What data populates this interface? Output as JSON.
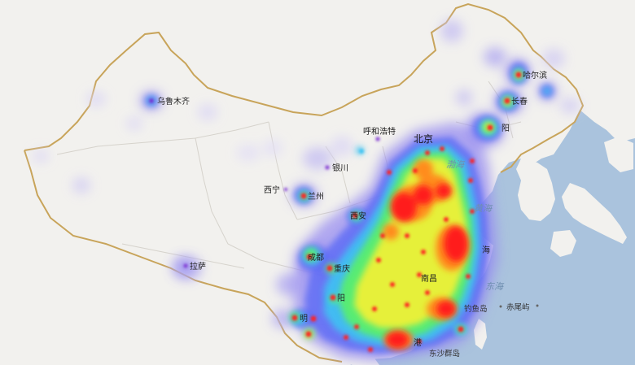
{
  "colors": {
    "land": "#f2f1ee",
    "sea": "#aac3dd",
    "national_border": "#c8a45a",
    "province_border": "#d6d3cc",
    "heat_scale": [
      "#ddd8f4",
      "#9a8ff0",
      "#5f6cf5",
      "#3ec3f2",
      "#58ee6e",
      "#eef035",
      "#ff8c1c",
      "#ff1d1d"
    ]
  },
  "cities": [
    {
      "name": "乌鲁木齐",
      "intensity": 0.35
    },
    {
      "name": "拉萨",
      "intensity": 0.3
    },
    {
      "name": "西宁",
      "intensity": 0.2
    },
    {
      "name": "兰州",
      "intensity": 0.55
    },
    {
      "name": "银川",
      "intensity": 0.25
    },
    {
      "name": "呼和浩特",
      "intensity": 0.35
    },
    {
      "name": "北京",
      "intensity": 0.95
    },
    {
      "name": "哈尔滨",
      "intensity": 0.6
    },
    {
      "name": "长春",
      "intensity": 0.6
    },
    {
      "name": "沈阳",
      "intensity": 0.7
    },
    {
      "name": "西安",
      "intensity": 0.6
    },
    {
      "name": "成都",
      "intensity": 0.7
    },
    {
      "name": "重庆",
      "intensity": 0.7
    },
    {
      "name": "贵阳",
      "intensity": 0.55
    },
    {
      "name": "上海",
      "intensity": 1.0
    }
  ],
  "labels": {
    "urumqi": "乌鲁木齐",
    "lhasa": "拉萨",
    "xining": "西宁",
    "lanzhou": "兰州",
    "yinchuan": "银川",
    "hohhot": "呼和浩特",
    "beijing": "北京",
    "harbin": "哈尔滨",
    "changchun": "长春",
    "shenyang": "阳",
    "xian": "西安",
    "chengdu": "成都",
    "chongqing": "重庆",
    "guiyang": "阳",
    "shanghai": "海",
    "nanchang": "南昌",
    "hongkong": "港",
    "kunming": "明",
    "bohai": "渤海",
    "yellow_sea": "黄海",
    "east_sea": "东海",
    "diaoyu": "钓鱼岛",
    "chiwei": "赤尾屿",
    "dongsha": "东沙群岛"
  }
}
